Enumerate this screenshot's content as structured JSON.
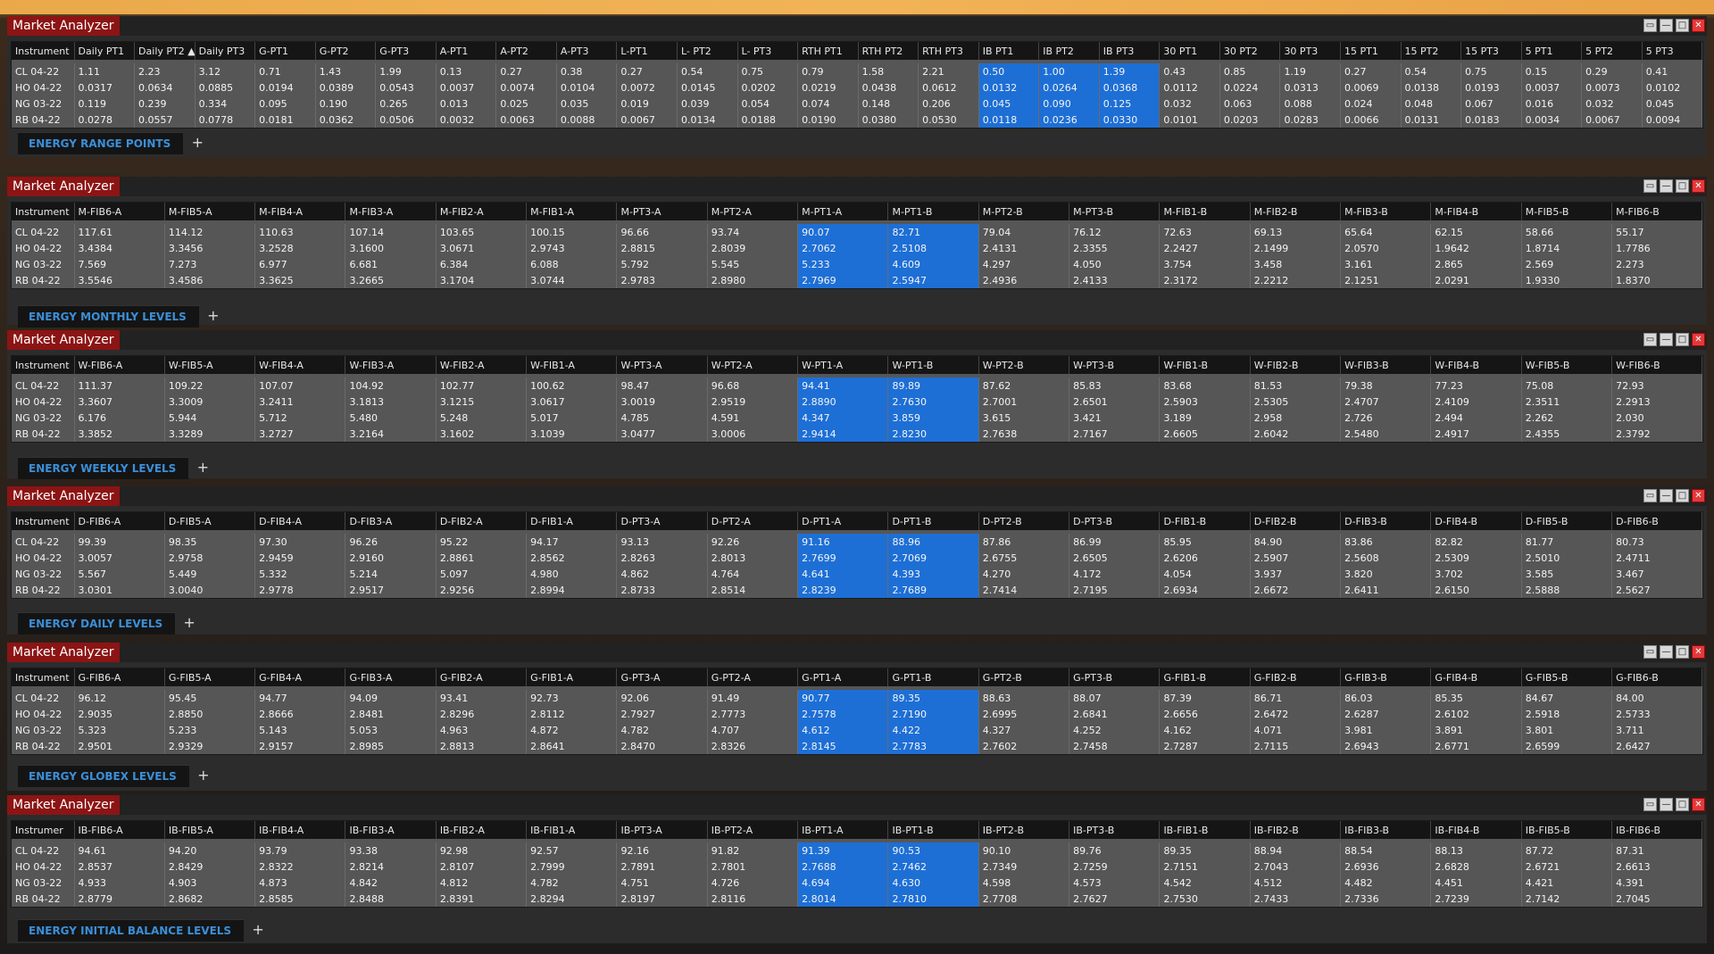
{
  "panels": [
    {
      "title": "Market Analyzer",
      "tab": "ENERGY RANGE POINTS",
      "columns": [
        "Instrument",
        "Daily PT1",
        "Daily PT2 ▲",
        "Daily PT3",
        "G-PT1",
        "G-PT2",
        "G-PT3",
        "A-PT1",
        "A-PT2",
        "A-PT3",
        "L-PT1",
        "L- PT2",
        "L- PT3",
        "RTH PT1",
        "RTH PT2",
        "RTH PT3",
        "IB PT1",
        "IB PT2",
        "IB PT3",
        "30 PT1",
        "30 PT2",
        "30 PT3",
        "15 PT1",
        "15 PT2",
        "15 PT3",
        "5 PT1",
        "5 PT2",
        "5 PT3"
      ],
      "highlight": [
        16,
        17,
        18
      ],
      "rows": [
        [
          "CL 04-22",
          "1.11",
          "2.23",
          "3.12",
          "0.71",
          "1.43",
          "1.99",
          "0.13",
          "0.27",
          "0.38",
          "0.27",
          "0.54",
          "0.75",
          "0.79",
          "1.58",
          "2.21",
          "0.50",
          "1.00",
          "1.39",
          "0.43",
          "0.85",
          "1.19",
          "0.27",
          "0.54",
          "0.75",
          "0.15",
          "0.29",
          "0.41"
        ],
        [
          "HO 04-22",
          "0.0317",
          "0.0634",
          "0.0885",
          "0.0194",
          "0.0389",
          "0.0543",
          "0.0037",
          "0.0074",
          "0.0104",
          "0.0072",
          "0.0145",
          "0.0202",
          "0.0219",
          "0.0438",
          "0.0612",
          "0.0132",
          "0.0264",
          "0.0368",
          "0.0112",
          "0.0224",
          "0.0313",
          "0.0069",
          "0.0138",
          "0.0193",
          "0.0037",
          "0.0073",
          "0.0102"
        ],
        [
          "NG 03-22",
          "0.119",
          "0.239",
          "0.334",
          "0.095",
          "0.190",
          "0.265",
          "0.013",
          "0.025",
          "0.035",
          "0.019",
          "0.039",
          "0.054",
          "0.074",
          "0.148",
          "0.206",
          "0.045",
          "0.090",
          "0.125",
          "0.032",
          "0.063",
          "0.088",
          "0.024",
          "0.048",
          "0.067",
          "0.016",
          "0.032",
          "0.045"
        ],
        [
          "RB 04-22",
          "0.0278",
          "0.0557",
          "0.0778",
          "0.0181",
          "0.0362",
          "0.0506",
          "0.0032",
          "0.0063",
          "0.0088",
          "0.0067",
          "0.0134",
          "0.0188",
          "0.0190",
          "0.0380",
          "0.0530",
          "0.0118",
          "0.0236",
          "0.0330",
          "0.0101",
          "0.0203",
          "0.0283",
          "0.0066",
          "0.0131",
          "0.0183",
          "0.0034",
          "0.0067",
          "0.0094"
        ]
      ]
    },
    {
      "title": "Market Analyzer",
      "tab": "ENERGY MONTHLY LEVELS",
      "columns": [
        "Instrument",
        "M-FIB6-A",
        "M-FIB5-A",
        "M-FIB4-A",
        "M-FIB3-A",
        "M-FIB2-A",
        "M-FIB1-A",
        "M-PT3-A",
        "M-PT2-A",
        "M-PT1-A",
        "M-PT1-B",
        "M-PT2-B",
        "M-PT3-B",
        "M-FIB1-B",
        "M-FIB2-B",
        "M-FIB3-B",
        "M-FIB4-B",
        "M-FIB5-B",
        "M-FIB6-B"
      ],
      "highlight": [
        9,
        10
      ],
      "rows": [
        [
          "CL 04-22",
          "117.61",
          "114.12",
          "110.63",
          "107.14",
          "103.65",
          "100.15",
          "96.66",
          "93.74",
          "90.07",
          "82.71",
          "79.04",
          "76.12",
          "72.63",
          "69.13",
          "65.64",
          "62.15",
          "58.66",
          "55.17"
        ],
        [
          "HO 04-22",
          "3.4384",
          "3.3456",
          "3.2528",
          "3.1600",
          "3.0671",
          "2.9743",
          "2.8815",
          "2.8039",
          "2.7062",
          "2.5108",
          "2.4131",
          "2.3355",
          "2.2427",
          "2.1499",
          "2.0570",
          "1.9642",
          "1.8714",
          "1.7786"
        ],
        [
          "NG 03-22",
          "7.569",
          "7.273",
          "6.977",
          "6.681",
          "6.384",
          "6.088",
          "5.792",
          "5.545",
          "5.233",
          "4.609",
          "4.297",
          "4.050",
          "3.754",
          "3.458",
          "3.161",
          "2.865",
          "2.569",
          "2.273"
        ],
        [
          "RB 04-22",
          "3.5546",
          "3.4586",
          "3.3625",
          "3.2665",
          "3.1704",
          "3.0744",
          "2.9783",
          "2.8980",
          "2.7969",
          "2.5947",
          "2.4936",
          "2.4133",
          "2.3172",
          "2.2212",
          "2.1251",
          "2.0291",
          "1.9330",
          "1.8370"
        ]
      ]
    },
    {
      "title": "Market Analyzer",
      "tab": "ENERGY WEEKLY LEVELS",
      "columns": [
        "Instrument",
        "W-FIB6-A",
        "W-FIB5-A",
        "W-FIB4-A",
        "W-FIB3-A",
        "W-FIB2-A",
        "W-FIB1-A",
        "W-PT3-A",
        "W-PT2-A",
        "W-PT1-A",
        "W-PT1-B",
        "W-PT2-B",
        "W-PT3-B",
        "W-FIB1-B",
        "W-FIB2-B",
        "W-FIB3-B",
        "W-FIB4-B",
        "W-FIB5-B",
        "W-FIB6-B"
      ],
      "highlight": [
        9,
        10
      ],
      "rows": [
        [
          "CL 04-22",
          "111.37",
          "109.22",
          "107.07",
          "104.92",
          "102.77",
          "100.62",
          "98.47",
          "96.68",
          "94.41",
          "89.89",
          "87.62",
          "85.83",
          "83.68",
          "81.53",
          "79.38",
          "77.23",
          "75.08",
          "72.93"
        ],
        [
          "HO 04-22",
          "3.3607",
          "3.3009",
          "3.2411",
          "3.1813",
          "3.1215",
          "3.0617",
          "3.0019",
          "2.9519",
          "2.8890",
          "2.7630",
          "2.7001",
          "2.6501",
          "2.5903",
          "2.5305",
          "2.4707",
          "2.4109",
          "2.3511",
          "2.2913"
        ],
        [
          "NG 03-22",
          "6.176",
          "5.944",
          "5.712",
          "5.480",
          "5.248",
          "5.017",
          "4.785",
          "4.591",
          "4.347",
          "3.859",
          "3.615",
          "3.421",
          "3.189",
          "2.958",
          "2.726",
          "2.494",
          "2.262",
          "2.030"
        ],
        [
          "RB 04-22",
          "3.3852",
          "3.3289",
          "3.2727",
          "3.2164",
          "3.1602",
          "3.1039",
          "3.0477",
          "3.0006",
          "2.9414",
          "2.8230",
          "2.7638",
          "2.7167",
          "2.6605",
          "2.6042",
          "2.5480",
          "2.4917",
          "2.4355",
          "2.3792"
        ]
      ]
    },
    {
      "title": "Market Analyzer",
      "tab": "ENERGY DAILY LEVELS",
      "columns": [
        "Instrument",
        "D-FIB6-A",
        "D-FIB5-A",
        "D-FIB4-A",
        "D-FIB3-A",
        "D-FIB2-A",
        "D-FIB1-A",
        "D-PT3-A",
        "D-PT2-A",
        "D-PT1-A",
        "D-PT1-B",
        "D-PT2-B",
        "D-PT3-B",
        "D-FIB1-B",
        "D-FIB2-B",
        "D-FIB3-B",
        "D-FIB4-B",
        "D-FIB5-B",
        "D-FIB6-B"
      ],
      "highlight": [
        9,
        10
      ],
      "rows": [
        [
          "CL 04-22",
          "99.39",
          "98.35",
          "97.30",
          "96.26",
          "95.22",
          "94.17",
          "93.13",
          "92.26",
          "91.16",
          "88.96",
          "87.86",
          "86.99",
          "85.95",
          "84.90",
          "83.86",
          "82.82",
          "81.77",
          "80.73"
        ],
        [
          "HO 04-22",
          "3.0057",
          "2.9758",
          "2.9459",
          "2.9160",
          "2.8861",
          "2.8562",
          "2.8263",
          "2.8013",
          "2.7699",
          "2.7069",
          "2.6755",
          "2.6505",
          "2.6206",
          "2.5907",
          "2.5608",
          "2.5309",
          "2.5010",
          "2.4711"
        ],
        [
          "NG 03-22",
          "5.567",
          "5.449",
          "5.332",
          "5.214",
          "5.097",
          "4.980",
          "4.862",
          "4.764",
          "4.641",
          "4.393",
          "4.270",
          "4.172",
          "4.054",
          "3.937",
          "3.820",
          "3.702",
          "3.585",
          "3.467"
        ],
        [
          "RB 04-22",
          "3.0301",
          "3.0040",
          "2.9778",
          "2.9517",
          "2.9256",
          "2.8994",
          "2.8733",
          "2.8514",
          "2.8239",
          "2.7689",
          "2.7414",
          "2.7195",
          "2.6934",
          "2.6672",
          "2.6411",
          "2.6150",
          "2.5888",
          "2.5627"
        ]
      ]
    },
    {
      "title": "Market Analyzer",
      "tab": "ENERGY GLOBEX LEVELS",
      "columns": [
        "Instrument",
        "G-FIB6-A",
        "G-FIB5-A",
        "G-FIB4-A",
        "G-FIB3-A",
        "G-FIB2-A",
        "G-FIB1-A",
        "G-PT3-A",
        "G-PT2-A",
        "G-PT1-A",
        "G-PT1-B",
        "G-PT2-B",
        "G-PT3-B",
        "G-FIB1-B",
        "G-FIB2-B",
        "G-FIB3-B",
        "G-FIB4-B",
        "G-FIB5-B",
        "G-FIB6-B"
      ],
      "highlight": [
        9,
        10
      ],
      "rows": [
        [
          "CL 04-22",
          "96.12",
          "95.45",
          "94.77",
          "94.09",
          "93.41",
          "92.73",
          "92.06",
          "91.49",
          "90.77",
          "89.35",
          "88.63",
          "88.07",
          "87.39",
          "86.71",
          "86.03",
          "85.35",
          "84.67",
          "84.00"
        ],
        [
          "HO 04-22",
          "2.9035",
          "2.8850",
          "2.8666",
          "2.8481",
          "2.8296",
          "2.8112",
          "2.7927",
          "2.7773",
          "2.7578",
          "2.7190",
          "2.6995",
          "2.6841",
          "2.6656",
          "2.6472",
          "2.6287",
          "2.6102",
          "2.5918",
          "2.5733"
        ],
        [
          "NG 03-22",
          "5.323",
          "5.233",
          "5.143",
          "5.053",
          "4.963",
          "4.872",
          "4.782",
          "4.707",
          "4.612",
          "4.422",
          "4.327",
          "4.252",
          "4.162",
          "4.071",
          "3.981",
          "3.891",
          "3.801",
          "3.711"
        ],
        [
          "RB 04-22",
          "2.9501",
          "2.9329",
          "2.9157",
          "2.8985",
          "2.8813",
          "2.8641",
          "2.8470",
          "2.8326",
          "2.8145",
          "2.7783",
          "2.7602",
          "2.7458",
          "2.7287",
          "2.7115",
          "2.6943",
          "2.6771",
          "2.6599",
          "2.6427"
        ]
      ]
    },
    {
      "title": "Market Analyzer",
      "tab": "ENERGY INITIAL BALANCE LEVELS",
      "columns": [
        "Instrumer",
        "IB-FIB6-A",
        "IB-FIB5-A",
        "IB-FIB4-A",
        "IB-FIB3-A",
        "IB-FIB2-A",
        "IB-FIB1-A",
        "IB-PT3-A",
        "IB-PT2-A",
        "IB-PT1-A",
        "IB-PT1-B",
        "IB-PT2-B",
        "IB-PT3-B",
        "IB-FIB1-B",
        "IB-FIB2-B",
        "IB-FIB3-B",
        "IB-FIB4-B",
        "IB-FIB5-B",
        "IB-FIB6-B"
      ],
      "highlight": [
        9,
        10
      ],
      "rows": [
        [
          "CL 04-22",
          "94.61",
          "94.20",
          "93.79",
          "93.38",
          "92.98",
          "92.57",
          "92.16",
          "91.82",
          "91.39",
          "90.53",
          "90.10",
          "89.76",
          "89.35",
          "88.94",
          "88.54",
          "88.13",
          "87.72",
          "87.31"
        ],
        [
          "HO 04-22",
          "2.8537",
          "2.8429",
          "2.8322",
          "2.8214",
          "2.8107",
          "2.7999",
          "2.7891",
          "2.7801",
          "2.7688",
          "2.7462",
          "2.7349",
          "2.7259",
          "2.7151",
          "2.7043",
          "2.6936",
          "2.6828",
          "2.6721",
          "2.6613"
        ],
        [
          "NG 03-22",
          "4.933",
          "4.903",
          "4.873",
          "4.842",
          "4.812",
          "4.782",
          "4.751",
          "4.726",
          "4.694",
          "4.630",
          "4.598",
          "4.573",
          "4.542",
          "4.512",
          "4.482",
          "4.451",
          "4.421",
          "4.391"
        ],
        [
          "RB 04-22",
          "2.8779",
          "2.8682",
          "2.8585",
          "2.8488",
          "2.8391",
          "2.8294",
          "2.8197",
          "2.8116",
          "2.8014",
          "2.7810",
          "2.7708",
          "2.7627",
          "2.7530",
          "2.7433",
          "2.7336",
          "2.7239",
          "2.7142",
          "2.7045"
        ]
      ]
    }
  ]
}
